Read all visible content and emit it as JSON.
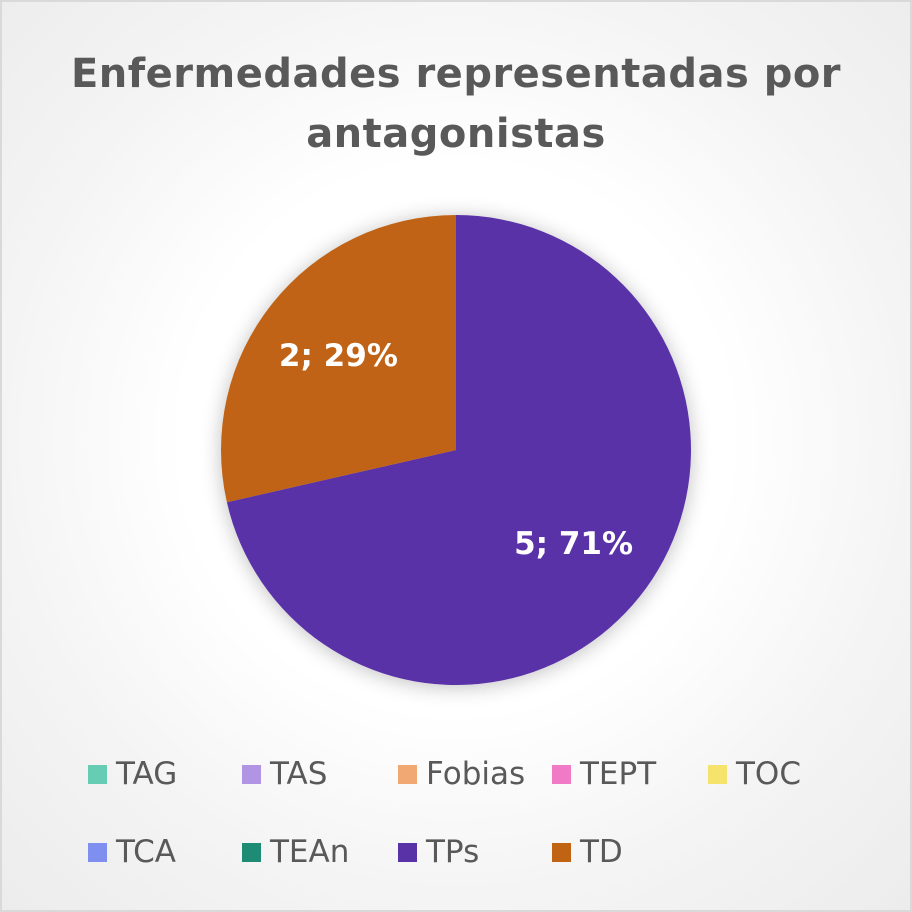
{
  "chart_data": {
    "type": "pie",
    "title": "Enfermedades representadas por antagonistas",
    "slices": [
      {
        "name": "TAG",
        "value": 0,
        "percent": 0,
        "label": "",
        "color": "#66cdb4"
      },
      {
        "name": "TAS",
        "value": 0,
        "percent": 0,
        "label": "",
        "color": "#b194e3"
      },
      {
        "name": "Fobias",
        "value": 0,
        "percent": 0,
        "label": "",
        "color": "#f2a873"
      },
      {
        "name": "TEPT",
        "value": 0,
        "percent": 0,
        "label": "",
        "color": "#f07ac6"
      },
      {
        "name": "TOC",
        "value": 0,
        "percent": 0,
        "label": "",
        "color": "#f5e36b"
      },
      {
        "name": "TCA",
        "value": 0,
        "percent": 0,
        "label": "",
        "color": "#7e8ff0"
      },
      {
        "name": "TEAn",
        "value": 0,
        "percent": 0,
        "label": "",
        "color": "#1e8c74"
      },
      {
        "name": "TPs",
        "value": 5,
        "percent": 71,
        "label": "5; 71%",
        "color": "#5a32a8"
      },
      {
        "name": "TD",
        "value": 2,
        "percent": 29,
        "label": "2; 29%",
        "color": "#c06414"
      }
    ],
    "legend_position": "bottom"
  }
}
